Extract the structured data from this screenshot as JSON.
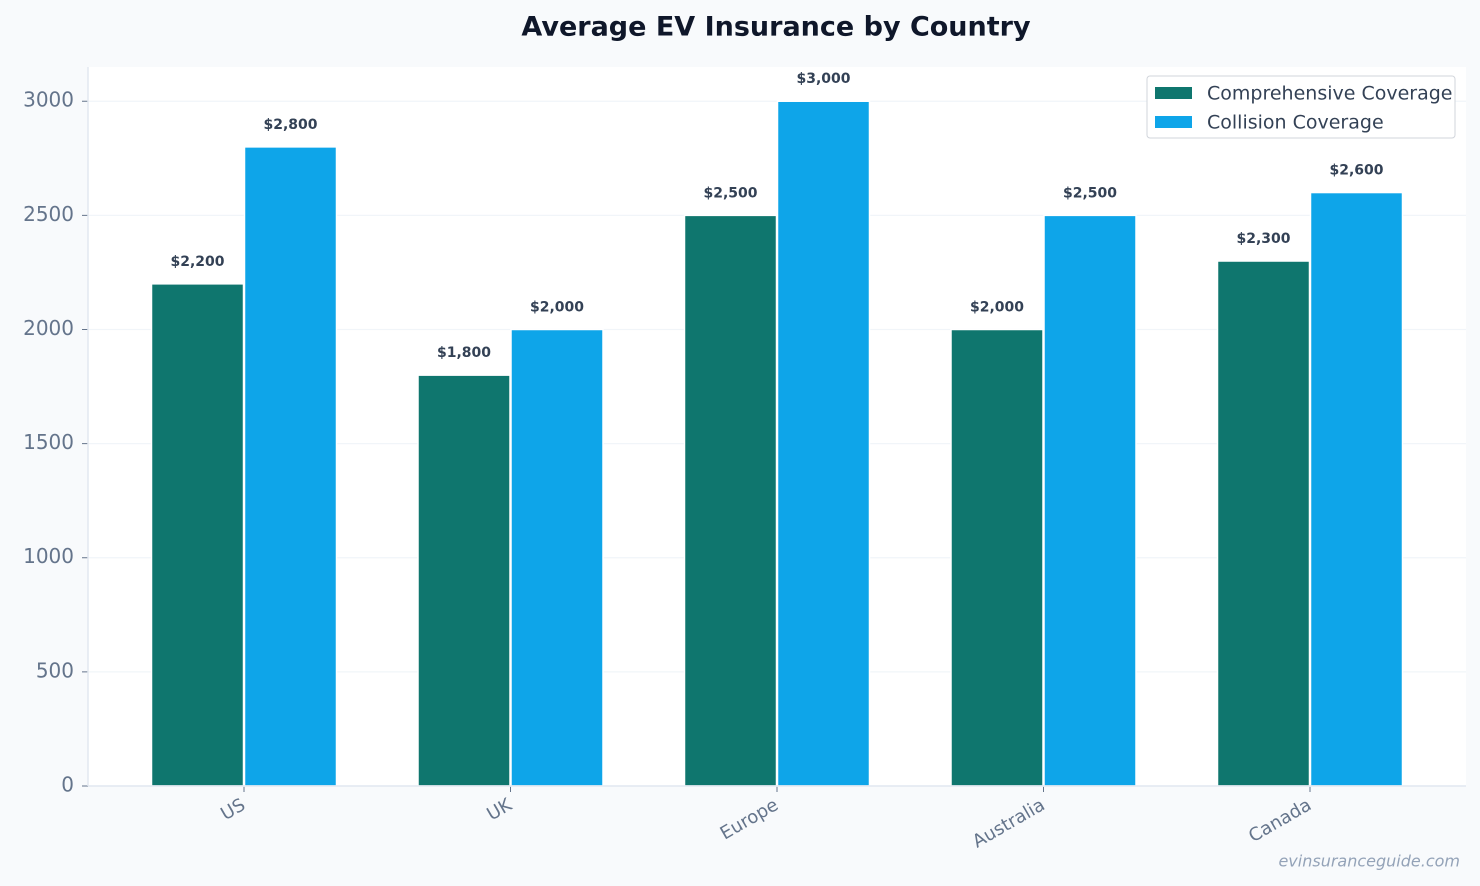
{
  "chart_data": {
    "type": "bar",
    "title": "Average EV Insurance by Country",
    "categories": [
      "US",
      "UK",
      "Europe",
      "Australia",
      "Canada"
    ],
    "series": [
      {
        "name": "Comprehensive Coverage",
        "color": "#0f766e",
        "values": [
          2200,
          1800,
          2500,
          2000,
          2300
        ],
        "value_labels": [
          "$2,200",
          "$1,800",
          "$2,500",
          "$2,000",
          "$2,300"
        ]
      },
      {
        "name": "Collision Coverage",
        "color": "#0ea5e9",
        "values": [
          2800,
          2000,
          3000,
          2500,
          2600
        ],
        "value_labels": [
          "$2,800",
          "$2,000",
          "$3,000",
          "$2,500",
          "$2,600"
        ]
      }
    ],
    "ylim": [
      0,
      3150
    ],
    "yticks": [
      0,
      500,
      1000,
      1500,
      2000,
      2500,
      3000
    ],
    "grid": true,
    "legend": "upper right",
    "watermark": "evinsuranceguide.com"
  }
}
